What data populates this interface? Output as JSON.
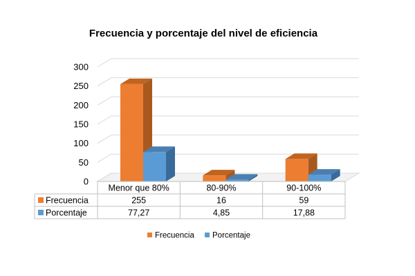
{
  "chart_data": {
    "type": "bar",
    "title": "Frecuencia y porcentaje del nivel de eficiencia",
    "categories": [
      "Menor que 80%",
      "80-90%",
      "90-100%"
    ],
    "series": [
      {
        "name": "Frecuencia",
        "values": [
          255,
          16,
          59
        ],
        "labels": [
          "255",
          "16",
          "59"
        ],
        "color": "#ED7D31",
        "side_color": "#A85A1E",
        "top_color": "#C0641F"
      },
      {
        "name": "Porcentaje",
        "values": [
          77.27,
          4.85,
          17.88
        ],
        "labels": [
          "77,27",
          "4,85",
          "17,88"
        ],
        "color": "#5B9BD5",
        "side_color": "#3A6A99",
        "top_color": "#4A7FB0"
      }
    ],
    "ylim": [
      0,
      300
    ],
    "yticks": [
      0,
      50,
      100,
      150,
      200,
      250,
      300
    ],
    "grid": true,
    "legend": "bottom",
    "data_table": true
  }
}
